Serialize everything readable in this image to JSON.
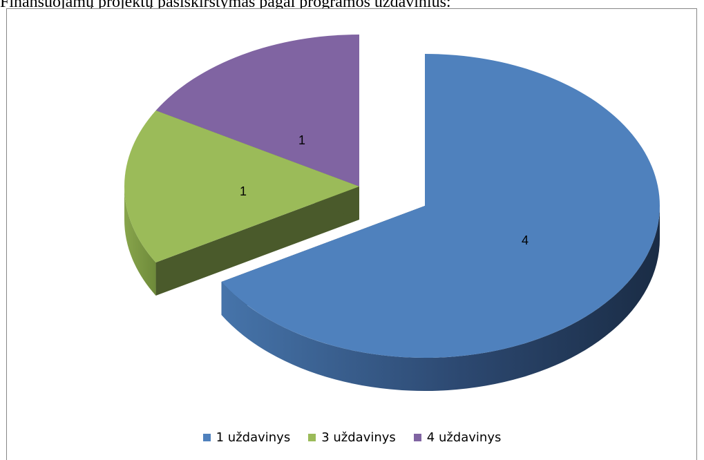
{
  "heading": "Finansuojamų projektų pasiskirstymas pagal programos uždavinius:",
  "chart_data": {
    "type": "pie",
    "title": "",
    "legend_position": "bottom",
    "three_d": true,
    "exploded": true,
    "categories": [
      "1 uždavinys",
      "3 uždavinys",
      "4 uždavinys"
    ],
    "values": [
      4,
      1,
      1
    ],
    "data_labels": [
      "4",
      "1",
      "1"
    ],
    "colors": [
      "#4F81BD",
      "#9BBB59",
      "#8064A2"
    ]
  }
}
